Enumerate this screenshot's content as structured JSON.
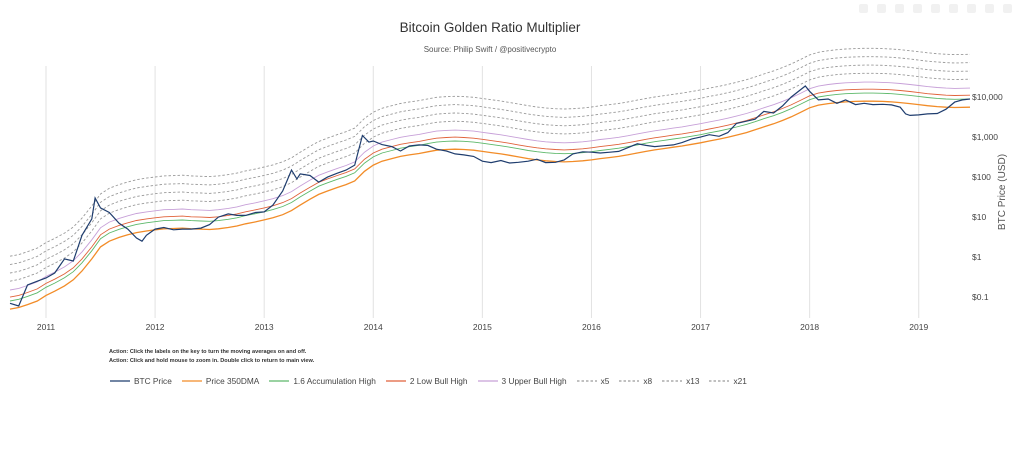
{
  "title": "Bitcoin Golden Ratio Multiplier",
  "subtitle": "Source: Philip Swift / @positivecrypto",
  "actions": [
    "Action: Click the labels on the key to turn the moving averages on and off.",
    "Action: Click and hold mouse to zoom in.  Double click to return to main view."
  ],
  "colors": {
    "btc": "#1f3d6e",
    "dma": "#f28c28",
    "x16": "#5db86a",
    "x2": "#e0623a",
    "x3": "#c7a0d8",
    "dashed": "#9a9a9a"
  },
  "chart_data": {
    "type": "line",
    "title": "Bitcoin Golden Ratio Multiplier",
    "ylabel": "BTC Price (USD)",
    "yscale": "log",
    "ylim": [
      0.03,
      60000
    ],
    "xlim": [
      2010.67,
      2019.47
    ],
    "grid": "vertical only",
    "legend_position": "bottom",
    "x_ticks": [
      {
        "value": 2011,
        "label": "2011"
      },
      {
        "value": 2012,
        "label": "2012"
      },
      {
        "value": 2013,
        "label": "2013"
      },
      {
        "value": 2014,
        "label": "2014"
      },
      {
        "value": 2015,
        "label": "2015"
      },
      {
        "value": 2016,
        "label": "2016"
      },
      {
        "value": 2017,
        "label": "2017"
      },
      {
        "value": 2018,
        "label": "2018"
      },
      {
        "value": 2019,
        "label": "2019"
      }
    ],
    "y_ticks": [
      {
        "value": 10000,
        "label": "$10,000"
      },
      {
        "value": 1000,
        "label": "$1,000"
      },
      {
        "value": 100,
        "label": "$100"
      },
      {
        "value": 10,
        "label": "$10"
      },
      {
        "value": 1,
        "label": "$1"
      },
      {
        "value": 0.1,
        "label": "$0.1"
      }
    ],
    "btc_price": {
      "name": "BTC Price",
      "points": [
        [
          2010.67,
          0.07
        ],
        [
          2010.75,
          0.06
        ],
        [
          2010.83,
          0.2
        ],
        [
          2010.92,
          0.25
        ],
        [
          2011.0,
          0.3
        ],
        [
          2011.08,
          0.4
        ],
        [
          2011.17,
          0.9
        ],
        [
          2011.25,
          0.8
        ],
        [
          2011.33,
          3.5
        ],
        [
          2011.42,
          9
        ],
        [
          2011.45,
          30
        ],
        [
          2011.5,
          17
        ],
        [
          2011.58,
          13
        ],
        [
          2011.67,
          7
        ],
        [
          2011.75,
          5
        ],
        [
          2011.83,
          3
        ],
        [
          2011.88,
          2.5
        ],
        [
          2011.92,
          3.5
        ],
        [
          2012.0,
          5
        ],
        [
          2012.08,
          5.5
        ],
        [
          2012.17,
          4.8
        ],
        [
          2012.25,
          5
        ],
        [
          2012.33,
          5
        ],
        [
          2012.42,
          5.3
        ],
        [
          2012.5,
          6.5
        ],
        [
          2012.58,
          10
        ],
        [
          2012.67,
          12
        ],
        [
          2012.75,
          11
        ],
        [
          2012.83,
          11
        ],
        [
          2012.92,
          13
        ],
        [
          2013.0,
          13.5
        ],
        [
          2013.08,
          20
        ],
        [
          2013.17,
          45
        ],
        [
          2013.25,
          150
        ],
        [
          2013.3,
          90
        ],
        [
          2013.33,
          120
        ],
        [
          2013.42,
          110
        ],
        [
          2013.5,
          75
        ],
        [
          2013.58,
          100
        ],
        [
          2013.67,
          125
        ],
        [
          2013.75,
          150
        ],
        [
          2013.83,
          200
        ],
        [
          2013.9,
          1100
        ],
        [
          2013.96,
          750
        ],
        [
          2014.0,
          800
        ],
        [
          2014.08,
          650
        ],
        [
          2014.17,
          580
        ],
        [
          2014.25,
          450
        ],
        [
          2014.33,
          600
        ],
        [
          2014.42,
          640
        ],
        [
          2014.5,
          620
        ],
        [
          2014.58,
          500
        ],
        [
          2014.67,
          450
        ],
        [
          2014.75,
          380
        ],
        [
          2014.83,
          360
        ],
        [
          2014.92,
          330
        ],
        [
          2015.0,
          250
        ],
        [
          2015.08,
          230
        ],
        [
          2015.17,
          260
        ],
        [
          2015.25,
          225
        ],
        [
          2015.33,
          235
        ],
        [
          2015.42,
          250
        ],
        [
          2015.5,
          280
        ],
        [
          2015.58,
          230
        ],
        [
          2015.67,
          235
        ],
        [
          2015.75,
          270
        ],
        [
          2015.83,
          380
        ],
        [
          2015.92,
          430
        ],
        [
          2016.0,
          420
        ],
        [
          2016.08,
          400
        ],
        [
          2016.17,
          420
        ],
        [
          2016.25,
          440
        ],
        [
          2016.33,
          540
        ],
        [
          2016.42,
          680
        ],
        [
          2016.5,
          620
        ],
        [
          2016.58,
          580
        ],
        [
          2016.67,
          610
        ],
        [
          2016.75,
          640
        ],
        [
          2016.83,
          730
        ],
        [
          2016.92,
          900
        ],
        [
          2017.0,
          1000
        ],
        [
          2017.08,
          1150
        ],
        [
          2017.17,
          1050
        ],
        [
          2017.25,
          1300
        ],
        [
          2017.33,
          2200
        ],
        [
          2017.42,
          2500
        ],
        [
          2017.5,
          2800
        ],
        [
          2017.58,
          4400
        ],
        [
          2017.67,
          4000
        ],
        [
          2017.75,
          6000
        ],
        [
          2017.83,
          10000
        ],
        [
          2017.96,
          19000
        ],
        [
          2018.0,
          14000
        ],
        [
          2018.08,
          8500
        ],
        [
          2018.17,
          9000
        ],
        [
          2018.25,
          7000
        ],
        [
          2018.33,
          8500
        ],
        [
          2018.42,
          6500
        ],
        [
          2018.5,
          7000
        ],
        [
          2018.58,
          6500
        ],
        [
          2018.67,
          6600
        ],
        [
          2018.75,
          6400
        ],
        [
          2018.83,
          5600
        ],
        [
          2018.88,
          3800
        ],
        [
          2018.92,
          3500
        ],
        [
          2019.0,
          3600
        ],
        [
          2019.08,
          3800
        ],
        [
          2019.17,
          3900
        ],
        [
          2019.25,
          5000
        ],
        [
          2019.33,
          7500
        ],
        [
          2019.4,
          8500
        ],
        [
          2019.47,
          9000
        ]
      ]
    },
    "dma_350": {
      "name": "Price 350DMA",
      "points": [
        [
          2010.67,
          0.05
        ],
        [
          2010.75,
          0.055
        ],
        [
          2010.83,
          0.065
        ],
        [
          2010.92,
          0.08
        ],
        [
          2011.0,
          0.11
        ],
        [
          2011.08,
          0.14
        ],
        [
          2011.17,
          0.19
        ],
        [
          2011.25,
          0.27
        ],
        [
          2011.33,
          0.45
        ],
        [
          2011.42,
          0.9
        ],
        [
          2011.5,
          1.8
        ],
        [
          2011.58,
          2.5
        ],
        [
          2011.67,
          3.1
        ],
        [
          2011.75,
          3.6
        ],
        [
          2011.83,
          4.1
        ],
        [
          2011.92,
          4.5
        ],
        [
          2012.0,
          4.8
        ],
        [
          2012.08,
          5.1
        ],
        [
          2012.17,
          5.2
        ],
        [
          2012.25,
          5.3
        ],
        [
          2012.33,
          5.1
        ],
        [
          2012.42,
          5.0
        ],
        [
          2012.5,
          4.9
        ],
        [
          2012.58,
          5.1
        ],
        [
          2012.67,
          5.5
        ],
        [
          2012.75,
          6.0
        ],
        [
          2012.83,
          6.8
        ],
        [
          2012.92,
          7.6
        ],
        [
          2013.0,
          8.5
        ],
        [
          2013.08,
          9.6
        ],
        [
          2013.17,
          11.5
        ],
        [
          2013.25,
          14.5
        ],
        [
          2013.33,
          20
        ],
        [
          2013.42,
          28
        ],
        [
          2013.5,
          37
        ],
        [
          2013.58,
          45
        ],
        [
          2013.67,
          55
        ],
        [
          2013.75,
          65
        ],
        [
          2013.83,
          80
        ],
        [
          2013.92,
          140
        ],
        [
          2014.0,
          200
        ],
        [
          2014.08,
          250
        ],
        [
          2014.17,
          290
        ],
        [
          2014.25,
          330
        ],
        [
          2014.33,
          360
        ],
        [
          2014.42,
          390
        ],
        [
          2014.5,
          430
        ],
        [
          2014.58,
          470
        ],
        [
          2014.67,
          490
        ],
        [
          2014.75,
          500
        ],
        [
          2014.83,
          490
        ],
        [
          2014.92,
          470
        ],
        [
          2015.0,
          440
        ],
        [
          2015.08,
          410
        ],
        [
          2015.17,
          380
        ],
        [
          2015.25,
          350
        ],
        [
          2015.33,
          320
        ],
        [
          2015.42,
          290
        ],
        [
          2015.5,
          270
        ],
        [
          2015.58,
          255
        ],
        [
          2015.67,
          245
        ],
        [
          2015.75,
          240
        ],
        [
          2015.83,
          245
        ],
        [
          2015.92,
          255
        ],
        [
          2016.0,
          270
        ],
        [
          2016.08,
          290
        ],
        [
          2016.17,
          310
        ],
        [
          2016.25,
          330
        ],
        [
          2016.33,
          360
        ],
        [
          2016.42,
          400
        ],
        [
          2016.5,
          440
        ],
        [
          2016.58,
          480
        ],
        [
          2016.67,
          520
        ],
        [
          2016.75,
          560
        ],
        [
          2016.83,
          600
        ],
        [
          2016.92,
          660
        ],
        [
          2017.0,
          720
        ],
        [
          2017.08,
          800
        ],
        [
          2017.17,
          890
        ],
        [
          2017.25,
          990
        ],
        [
          2017.33,
          1120
        ],
        [
          2017.42,
          1300
        ],
        [
          2017.5,
          1520
        ],
        [
          2017.58,
          1800
        ],
        [
          2017.67,
          2150
        ],
        [
          2017.75,
          2600
        ],
        [
          2017.83,
          3200
        ],
        [
          2017.92,
          4200
        ],
        [
          2018.0,
          5400
        ],
        [
          2018.08,
          6300
        ],
        [
          2018.17,
          6900
        ],
        [
          2018.25,
          7300
        ],
        [
          2018.33,
          7600
        ],
        [
          2018.42,
          7800
        ],
        [
          2018.5,
          7900
        ],
        [
          2018.58,
          7900
        ],
        [
          2018.67,
          7800
        ],
        [
          2018.75,
          7600
        ],
        [
          2018.83,
          7300
        ],
        [
          2018.92,
          6900
        ],
        [
          2019.0,
          6500
        ],
        [
          2019.08,
          6100
        ],
        [
          2019.17,
          5800
        ],
        [
          2019.25,
          5600
        ],
        [
          2019.33,
          5500
        ],
        [
          2019.47,
          5600
        ]
      ]
    },
    "multipliers": [
      {
        "name": "1.6 Accumulation High",
        "factor": 1.6,
        "style": "solid"
      },
      {
        "name": "2 Low Bull High",
        "factor": 2,
        "style": "solid"
      },
      {
        "name": "3 Upper Bull High",
        "factor": 3,
        "style": "solid"
      },
      {
        "name": "x5",
        "factor": 5,
        "style": "dashed"
      },
      {
        "name": "x8",
        "factor": 8,
        "style": "dashed"
      },
      {
        "name": "x13",
        "factor": 13,
        "style": "dashed"
      },
      {
        "name": "x21",
        "factor": 21,
        "style": "dashed"
      }
    ]
  },
  "legend": [
    {
      "label": "BTC Price",
      "color": "#1f3d6e",
      "style": "solid"
    },
    {
      "label": "Price 350DMA",
      "color": "#f28c28",
      "style": "solid"
    },
    {
      "label": "1.6 Accumulation High",
      "color": "#5db86a",
      "style": "solid"
    },
    {
      "label": "2 Low Bull High",
      "color": "#e0623a",
      "style": "solid"
    },
    {
      "label": "3 Upper Bull High",
      "color": "#c7a0d8",
      "style": "solid"
    },
    {
      "label": "x5",
      "color": "#9a9a9a",
      "style": "dashed"
    },
    {
      "label": "x8",
      "color": "#9a9a9a",
      "style": "dashed"
    },
    {
      "label": "x13",
      "color": "#9a9a9a",
      "style": "dashed"
    },
    {
      "label": "x21",
      "color": "#9a9a9a",
      "style": "dashed"
    }
  ]
}
